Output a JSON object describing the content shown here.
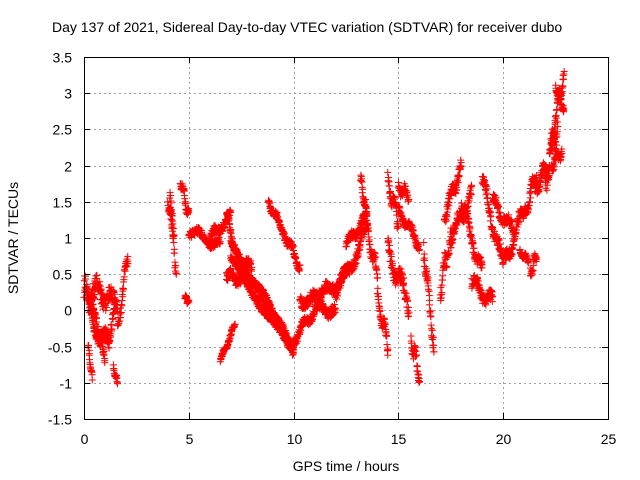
{
  "chart_data": {
    "type": "scatter",
    "title": "Day 137 of 2021, Sidereal Day-to-day VTEC variation (SDTVAR) for receiver dubo",
    "xlabel": "GPS time / hours",
    "ylabel": "SDTVAR / TECUs",
    "xlim": [
      0,
      25
    ],
    "ylim": [
      -1.5,
      3.5
    ],
    "x_ticks": [
      0,
      5,
      10,
      15,
      20,
      25
    ],
    "x_tick_labels": [
      "0",
      "5",
      "10",
      "15",
      "20",
      "25"
    ],
    "y_ticks": [
      -1.5,
      -1,
      -0.5,
      0,
      0.5,
      1,
      1.5,
      2,
      2.5,
      3,
      3.5
    ],
    "y_tick_labels": [
      "-1.5",
      "-1",
      "-0.5",
      "0",
      "0.5",
      "1",
      "1.5",
      "2",
      "2.5",
      "3",
      "3.5"
    ],
    "grid": true,
    "marker": "+",
    "color": "#ff0000",
    "series": [
      {
        "name": "SDTVAR",
        "segments": [
          {
            "t0": 0.0,
            "t1": 0.5,
            "y0": 0.3,
            "y1": 0.1,
            "amp": 0.25
          },
          {
            "t0": 0.1,
            "t1": 1.0,
            "y0": 0.2,
            "y1": -0.7,
            "amp": 0.12
          },
          {
            "t0": 0.3,
            "t1": 1.2,
            "y0": 0.0,
            "y1": -0.5,
            "amp": 0.15
          },
          {
            "t0": 0.2,
            "t1": 0.4,
            "y0": -0.5,
            "y1": -0.95,
            "amp": 0.05
          },
          {
            "t0": 0.5,
            "t1": 1.5,
            "y0": 0.3,
            "y1": 0.1,
            "amp": 0.2
          },
          {
            "t0": 1.0,
            "t1": 1.6,
            "y0": -0.5,
            "y1": 0.1,
            "amp": 0.2
          },
          {
            "t0": 1.4,
            "t1": 1.6,
            "y0": -0.8,
            "y1": -1.0,
            "amp": 0.05
          },
          {
            "t0": 1.6,
            "t1": 2.1,
            "y0": -0.3,
            "y1": 0.8,
            "amp": 0.15
          },
          {
            "t0": 4.1,
            "t1": 4.4,
            "y0": 1.7,
            "y1": 0.5,
            "amp": 0.15
          },
          {
            "t0": 4.0,
            "t1": 4.3,
            "y0": 1.5,
            "y1": 1.0,
            "amp": 0.1
          },
          {
            "t0": 4.6,
            "t1": 5.0,
            "y0": 1.8,
            "y1": 1.3,
            "amp": 0.1
          },
          {
            "t0": 4.8,
            "t1": 5.0,
            "y0": 0.2,
            "y1": 0.1,
            "amp": 0.05
          },
          {
            "t0": 5.0,
            "t1": 6.5,
            "y0": 1.1,
            "y1": 0.9,
            "amp": 0.1
          },
          {
            "t0": 6.0,
            "t1": 7.0,
            "y0": 1.0,
            "y1": 1.3,
            "amp": 0.1
          },
          {
            "t0": 6.5,
            "t1": 7.2,
            "y0": -0.7,
            "y1": -0.2,
            "amp": 0.05
          },
          {
            "t0": 6.8,
            "t1": 7.5,
            "y0": 1.3,
            "y1": 0.5,
            "amp": 0.1
          },
          {
            "t0": 6.8,
            "t1": 8.0,
            "y0": 0.4,
            "y1": 0.6,
            "amp": 0.15
          },
          {
            "t0": 7.0,
            "t1": 9.0,
            "y0": 0.9,
            "y1": 0.0,
            "amp": 0.08
          },
          {
            "t0": 7.0,
            "t1": 10.0,
            "y0": 0.7,
            "y1": -0.6,
            "amp": 0.08
          },
          {
            "t0": 8.0,
            "t1": 10.0,
            "y0": 0.4,
            "y1": -0.5,
            "amp": 0.08
          },
          {
            "t0": 8.8,
            "t1": 9.5,
            "y0": 1.5,
            "y1": 1.1,
            "amp": 0.08
          },
          {
            "t0": 9.5,
            "t1": 10.3,
            "y0": 1.1,
            "y1": 0.6,
            "amp": 0.1
          },
          {
            "t0": 10.0,
            "t1": 11.0,
            "y0": -0.4,
            "y1": 0.0,
            "amp": 0.1
          },
          {
            "t0": 10.3,
            "t1": 12.0,
            "y0": 0.2,
            "y1": 0.0,
            "amp": 0.15
          },
          {
            "t0": 11.0,
            "t1": 12.5,
            "y0": 0.1,
            "y1": 0.5,
            "amp": 0.15
          },
          {
            "t0": 12.0,
            "t1": 13.5,
            "y0": 0.2,
            "y1": 1.1,
            "amp": 0.15
          },
          {
            "t0": 12.5,
            "t1": 13.5,
            "y0": 0.9,
            "y1": 1.3,
            "amp": 0.1
          },
          {
            "t0": 13.2,
            "t1": 13.5,
            "y0": 1.8,
            "y1": 1.3,
            "amp": 0.1
          },
          {
            "t0": 13.5,
            "t1": 14.0,
            "y0": 1.1,
            "y1": 0.5,
            "amp": 0.15
          },
          {
            "t0": 14.0,
            "t1": 14.5,
            "y0": 0.2,
            "y1": -0.5,
            "amp": 0.15
          },
          {
            "t0": 14.5,
            "t1": 15.0,
            "y0": 1.8,
            "y1": 1.2,
            "amp": 0.15
          },
          {
            "t0": 14.5,
            "t1": 15.5,
            "y0": 0.8,
            "y1": 0.1,
            "amp": 0.2
          },
          {
            "t0": 15.0,
            "t1": 15.5,
            "y0": 1.7,
            "y1": 1.6,
            "amp": 0.1
          },
          {
            "t0": 15.0,
            "t1": 16.0,
            "y0": 1.4,
            "y1": 0.9,
            "amp": 0.1
          },
          {
            "t0": 15.6,
            "t1": 16.0,
            "y0": -0.4,
            "y1": -0.9,
            "amp": 0.15
          },
          {
            "t0": 16.2,
            "t1": 16.7,
            "y0": 0.9,
            "y1": -0.5,
            "amp": 0.2
          },
          {
            "t0": 17.0,
            "t1": 17.5,
            "y0": 0.3,
            "y1": 1.0,
            "amp": 0.2
          },
          {
            "t0": 17.2,
            "t1": 18.0,
            "y0": 1.3,
            "y1": 2.0,
            "amp": 0.15
          },
          {
            "t0": 17.5,
            "t1": 18.5,
            "y0": 1.0,
            "y1": 1.6,
            "amp": 0.15
          },
          {
            "t0": 18.0,
            "t1": 19.0,
            "y0": 1.5,
            "y1": 0.5,
            "amp": 0.15
          },
          {
            "t0": 18.5,
            "t1": 19.5,
            "y0": 0.4,
            "y1": 0.1,
            "amp": 0.15
          },
          {
            "t0": 19.0,
            "t1": 20.0,
            "y0": 1.8,
            "y1": 0.6,
            "amp": 0.15
          },
          {
            "t0": 19.5,
            "t1": 20.5,
            "y0": 1.5,
            "y1": 1.1,
            "amp": 0.12
          },
          {
            "t0": 20.0,
            "t1": 21.0,
            "y0": 0.6,
            "y1": 1.4,
            "amp": 0.15
          },
          {
            "t0": 20.8,
            "t1": 21.2,
            "y0": 0.8,
            "y1": 0.7,
            "amp": 0.05
          },
          {
            "t0": 21.0,
            "t1": 21.6,
            "y0": 1.3,
            "y1": 1.9,
            "amp": 0.15
          },
          {
            "t0": 21.3,
            "t1": 21.6,
            "y0": 0.5,
            "y1": 0.8,
            "amp": 0.1
          },
          {
            "t0": 21.5,
            "t1": 22.2,
            "y0": 1.7,
            "y1": 2.0,
            "amp": 0.15
          },
          {
            "t0": 22.0,
            "t1": 22.6,
            "y0": 1.8,
            "y1": 2.6,
            "amp": 0.25
          },
          {
            "t0": 22.3,
            "t1": 22.9,
            "y0": 2.3,
            "y1": 3.3,
            "amp": 0.15
          },
          {
            "t0": 22.5,
            "t1": 22.9,
            "y0": 3.1,
            "y1": 2.8,
            "amp": 0.1
          },
          {
            "t0": 22.3,
            "t1": 22.8,
            "y0": 2.0,
            "y1": 2.2,
            "amp": 0.1
          }
        ]
      }
    ]
  }
}
